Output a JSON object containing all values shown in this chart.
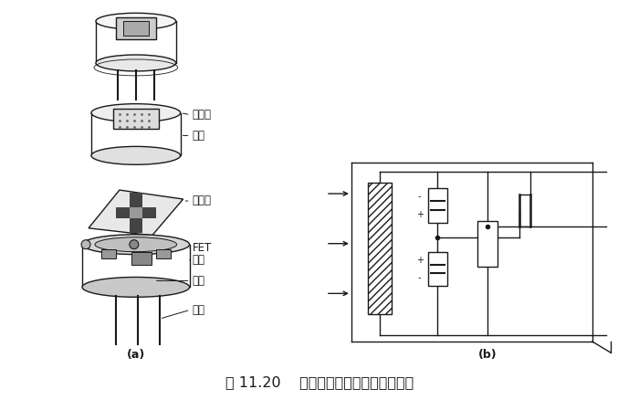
{
  "title": "图 11.20    热释电人体红外传感器的结构",
  "label_a": "(a)",
  "label_b": "(b)",
  "labels": {
    "filter": "滤光片",
    "cap": "管帽",
    "element": "敏感元",
    "fet": "FET",
    "socket": "管座",
    "resistor": "高阻",
    "lead": "引线"
  },
  "bg_color": "#ffffff",
  "line_color": "#1a1a1a"
}
